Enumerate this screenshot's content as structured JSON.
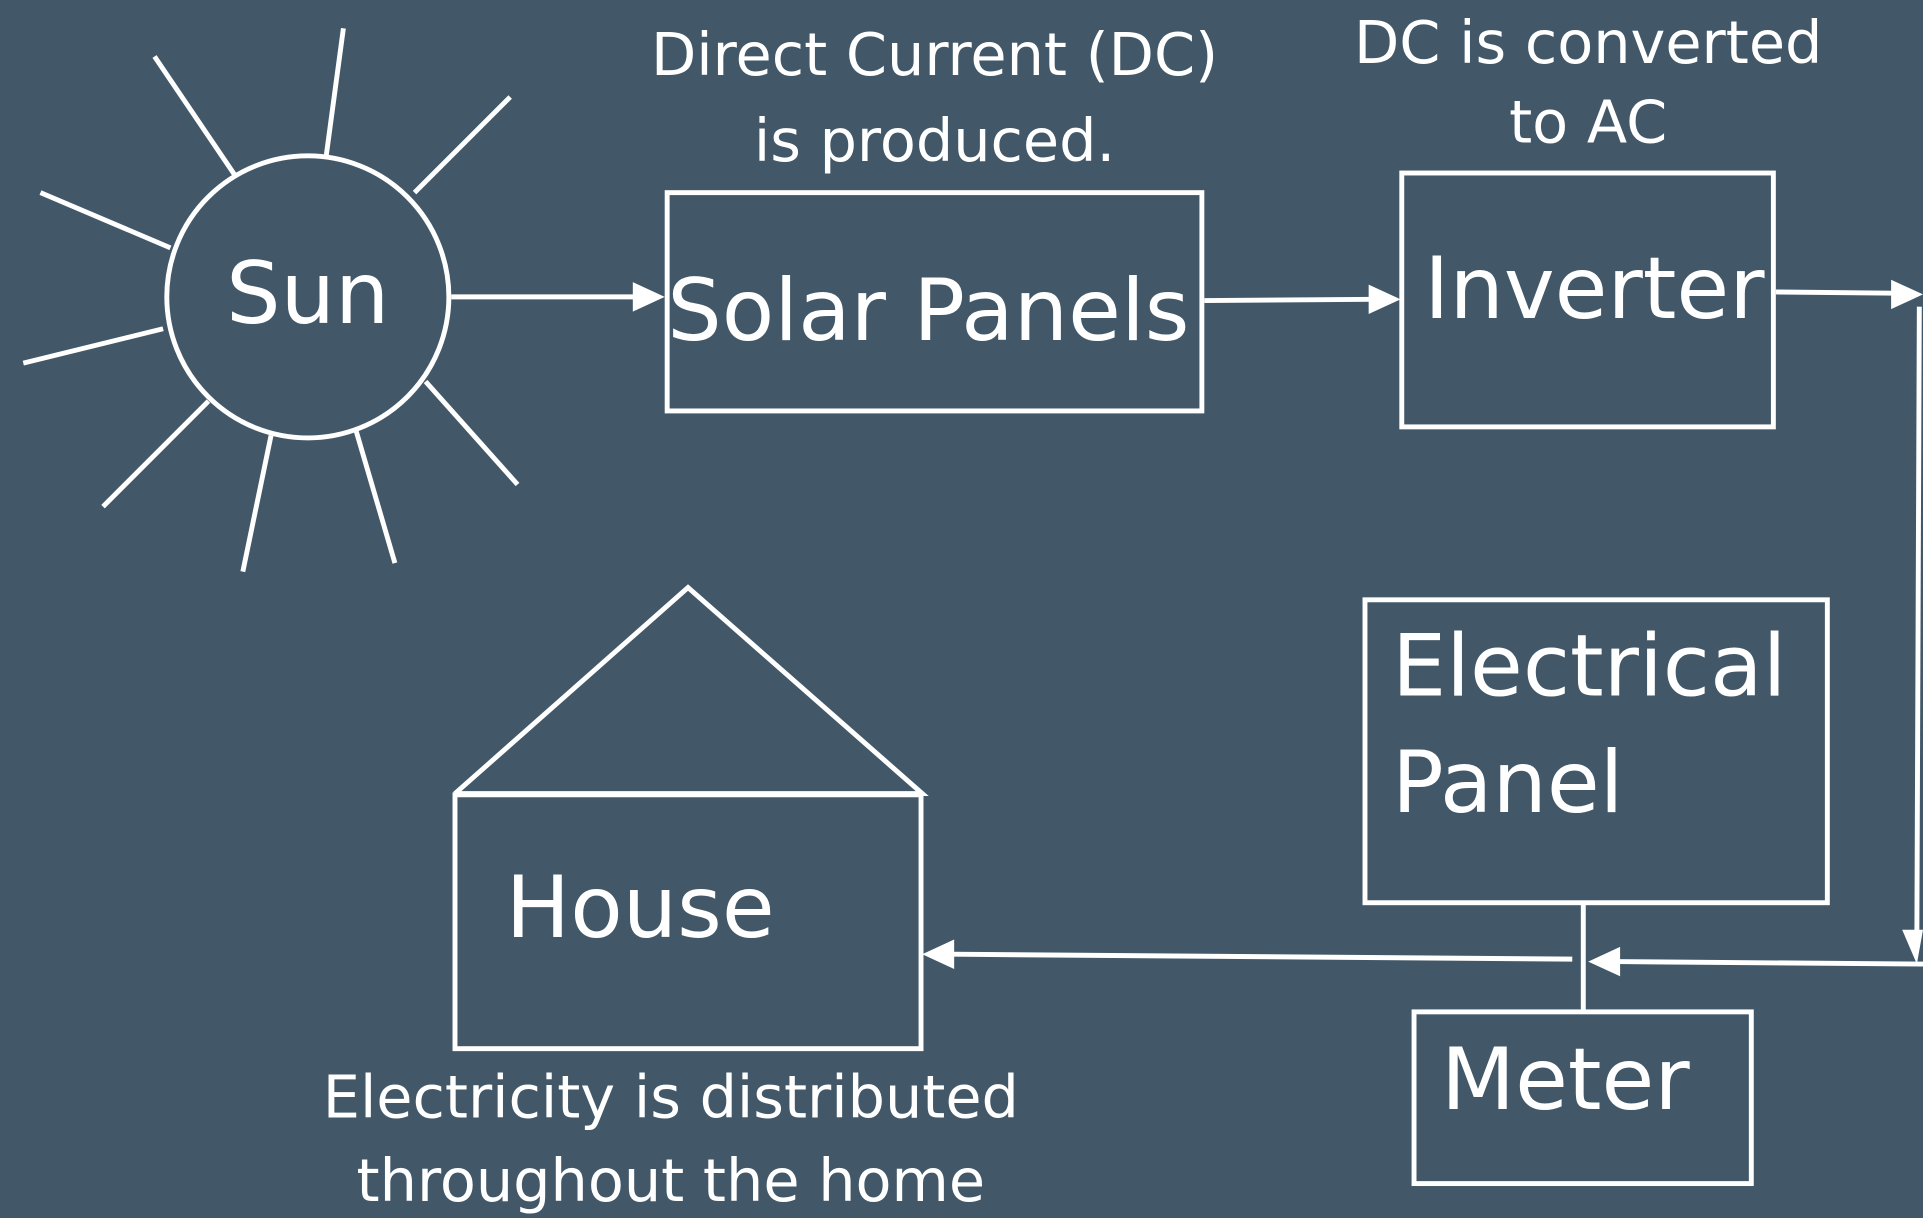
{
  "nodes": [
    {
      "label": [
        "Sun"
      ]
    },
    {
      "label": [
        "Solar Panels"
      ]
    },
    {
      "label": [
        "Inverter"
      ]
    },
    {
      "label": [
        "Electrical",
        "Panel"
      ]
    },
    {
      "label": [
        "Meter"
      ]
    },
    {
      "label": [
        "House"
      ]
    }
  ],
  "annotations": [
    {
      "lines": [
        "Direct Current (DC)",
        "is produced."
      ]
    },
    {
      "lines": [
        "DC is converted",
        "to AC"
      ]
    },
    {
      "lines": [
        "Electricity is distributed",
        "throughout the home"
      ]
    }
  ]
}
